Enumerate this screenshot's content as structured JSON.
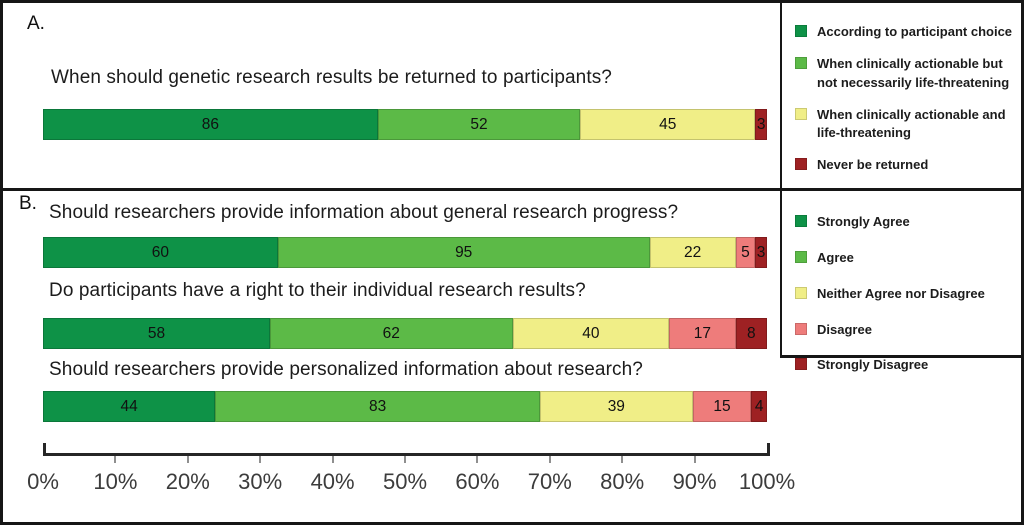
{
  "panels_ui": {
    "a_label": "A.",
    "b_label": "B."
  },
  "colors": {
    "dark_green": "#0E9247",
    "light_green": "#5CBA47",
    "yellow": "#F0EE87",
    "pink": "#EE7C7B",
    "dark_red": "#9E2123",
    "line": "#161616"
  },
  "chart_data": {
    "type": "bar",
    "orientation": "horizontal",
    "stacked": true,
    "grid": false,
    "legend_position": "right",
    "x_axis": {
      "range_percent": [
        0,
        100
      ],
      "tick_labels": [
        "0%",
        "10%",
        "20%",
        "30%",
        "40%",
        "50%",
        "60%",
        "70%",
        "80%",
        "90%",
        "100%"
      ]
    },
    "panels": [
      {
        "id": "A",
        "legend": [
          {
            "label": "According to participant choice",
            "color": "#0E9247"
          },
          {
            "label": "When clinically actionable but not necessarily life-threatening",
            "color": "#5CBA47"
          },
          {
            "label": "When clinically actionable and life-threatening",
            "color": "#F0EE87"
          },
          {
            "label": "Never be returned",
            "color": "#9E2123"
          }
        ],
        "bars": [
          {
            "question": "When should genetic research results be returned to participants?",
            "values": [
              86,
              52,
              45,
              3
            ]
          }
        ]
      },
      {
        "id": "B",
        "legend": [
          {
            "label": "Strongly Agree",
            "color": "#0E9247"
          },
          {
            "label": "Agree",
            "color": "#5CBA47"
          },
          {
            "label": "Neither Agree nor Disagree",
            "color": "#F0EE87"
          },
          {
            "label": "Disagree",
            "color": "#EE7C7B"
          },
          {
            "label": "Strongly Disagree",
            "color": "#9E2123"
          }
        ],
        "bars": [
          {
            "question": "Should researchers provide information about general research progress?",
            "values": [
              60,
              95,
              22,
              5,
              3
            ]
          },
          {
            "question": "Do participants have a right to their individual research results?",
            "values": [
              58,
              62,
              40,
              17,
              8
            ]
          },
          {
            "question": "Should researchers provide personalized information about research?",
            "values": [
              44,
              83,
              39,
              15,
              4
            ]
          }
        ]
      }
    ]
  }
}
